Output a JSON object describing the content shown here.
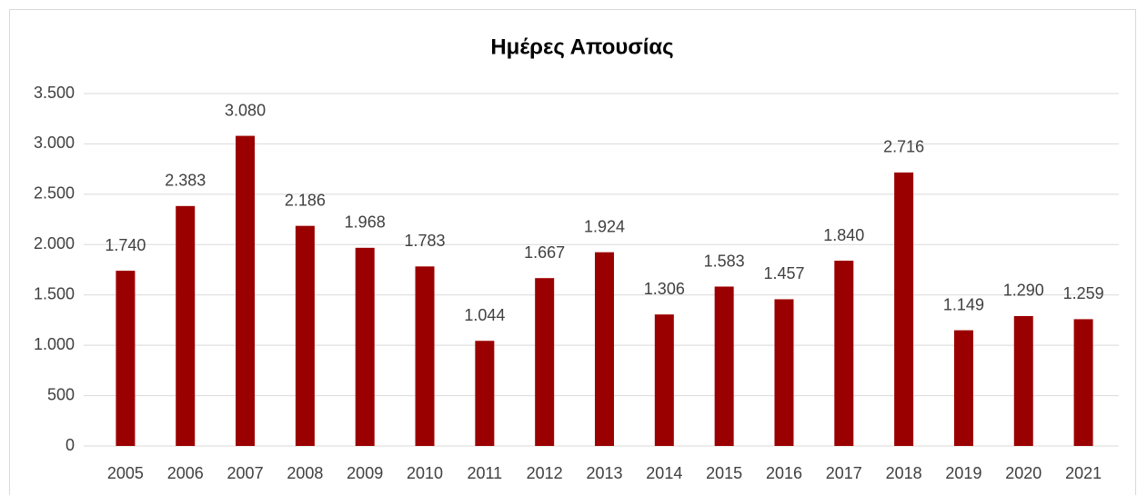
{
  "chart_data": {
    "type": "bar",
    "title": "Ημέρες Απουσίας",
    "categories": [
      "2005",
      "2006",
      "2007",
      "2008",
      "2009",
      "2010",
      "2011",
      "2012",
      "2013",
      "2014",
      "2015",
      "2016",
      "2017",
      "2018",
      "2019",
      "2020",
      "2021"
    ],
    "values": [
      1740,
      2383,
      3080,
      2186,
      1968,
      1783,
      1044,
      1667,
      1924,
      1306,
      1583,
      1457,
      1840,
      2716,
      1149,
      1290,
      1259
    ],
    "value_labels": [
      "1.740",
      "2.383",
      "3.080",
      "2.186",
      "1.968",
      "1.783",
      "1.044",
      "1.667",
      "1.924",
      "1.306",
      "1.583",
      "1.457",
      "1.840",
      "2.716",
      "1.149",
      "1.290",
      "1.259"
    ],
    "color": "#9b0000",
    "ylim": [
      0,
      3500
    ],
    "yticks": [
      0,
      500,
      {
        "value": 1000,
        "label": "1.000"
      },
      {
        "value": 1500,
        "label": "1.500"
      },
      {
        "value": 2000,
        "label": "2.000"
      },
      {
        "value": 2500,
        "label": "2.500"
      },
      {
        "value": 3000,
        "label": "3.000"
      },
      {
        "value": 3500,
        "label": "3.500"
      }
    ],
    "grid": true
  }
}
